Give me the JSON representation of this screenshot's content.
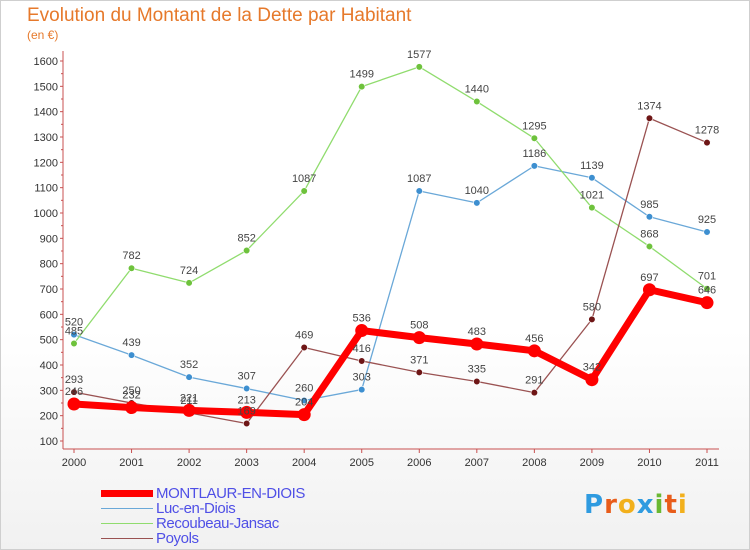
{
  "header": {
    "title": "Evolution du Montant de la Dette par Habitant",
    "unit": "(en €)"
  },
  "logo": {
    "text": "Proxiti",
    "letters": [
      "P",
      "r",
      "o",
      "x",
      "i",
      "t",
      "i"
    ],
    "colors": [
      "#2f9be0",
      "#e85c1a",
      "#f2b01c",
      "#2f9be0",
      "#6ab832",
      "#e85c1a",
      "#f2b01c"
    ]
  },
  "chart_data": {
    "type": "line",
    "title": "Evolution du Montant de la Dette par Habitant",
    "ylabel": "(en €)",
    "xlabel": "",
    "x": [
      "2000",
      "2001",
      "2002",
      "2003",
      "2004",
      "2005",
      "2006",
      "2007",
      "2008",
      "2009",
      "2010",
      "2011"
    ],
    "ylim": [
      100,
      1600
    ],
    "yticks": [
      100,
      200,
      300,
      400,
      500,
      600,
      700,
      800,
      900,
      1000,
      1100,
      1200,
      1300,
      1400,
      1500,
      1600
    ],
    "grid": false,
    "legend_position": "bottom-left",
    "series": [
      {
        "name": "MONTLAUR-EN-DIOIS",
        "color": "#ff0000",
        "marker_color": "#ff0000",
        "emphasis": true,
        "values": [
          246,
          232,
          221,
          213,
          204,
          536,
          508,
          483,
          456,
          342,
          697,
          646
        ],
        "labels": [
          "246",
          "232",
          "221",
          "213",
          "204",
          "536",
          "508",
          "483",
          "456",
          "342",
          "697",
          "646"
        ]
      },
      {
        "name": "Luc-en-Diois",
        "color": "#6aa8d8",
        "marker_color": "#3d8fd0",
        "emphasis": false,
        "values": [
          520,
          439,
          352,
          307,
          260,
          303,
          1087,
          1040,
          1186,
          1139,
          985,
          925
        ],
        "labels": [
          "520",
          "439",
          "352",
          "307",
          "260",
          "303",
          "1087",
          "1040",
          "1186",
          "1139",
          "985",
          "925"
        ]
      },
      {
        "name": "Recoubeau-Jansac",
        "color": "#90dc6e",
        "marker_color": "#6ec23c",
        "emphasis": false,
        "values": [
          485,
          782,
          724,
          852,
          1087,
          1499,
          1577,
          1440,
          1295,
          1021,
          868,
          701
        ],
        "labels": [
          "485",
          "782",
          "724",
          "852",
          "1087",
          "1499",
          "1577",
          "1440",
          "1295",
          "1021",
          "868",
          "701"
        ]
      },
      {
        "name": "Poyols",
        "color": "#9a5252",
        "marker_color": "#6e1616",
        "emphasis": false,
        "values": [
          293,
          250,
          211,
          169,
          469,
          416,
          371,
          335,
          291,
          580,
          1374,
          1278
        ],
        "labels": [
          "293",
          "250",
          "211",
          "169",
          "469",
          "416",
          "371",
          "335",
          "291",
          "580",
          "1374",
          "1278"
        ]
      }
    ]
  }
}
